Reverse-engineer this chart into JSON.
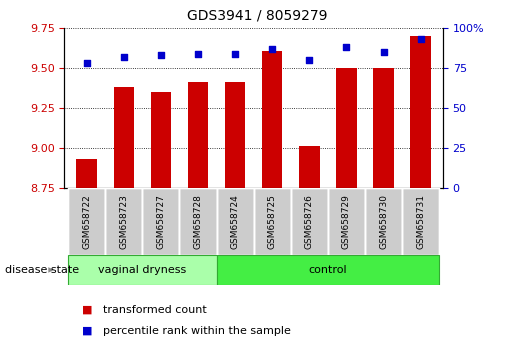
{
  "title": "GDS3941 / 8059279",
  "samples": [
    "GSM658722",
    "GSM658723",
    "GSM658727",
    "GSM658728",
    "GSM658724",
    "GSM658725",
    "GSM658726",
    "GSM658729",
    "GSM658730",
    "GSM658731"
  ],
  "bar_values": [
    8.93,
    9.38,
    9.35,
    9.41,
    9.41,
    9.61,
    9.01,
    9.5,
    9.5,
    9.7
  ],
  "dot_values": [
    78,
    82,
    83,
    84,
    84,
    87,
    80,
    88,
    85,
    93
  ],
  "ylim_left": [
    8.75,
    9.75
  ],
  "ylim_right": [
    0,
    100
  ],
  "yticks_left": [
    8.75,
    9.0,
    9.25,
    9.5,
    9.75
  ],
  "yticks_right": [
    0,
    25,
    50,
    75,
    100
  ],
  "bar_color": "#cc0000",
  "dot_color": "#0000cc",
  "vaginal_dryness_samples": [
    "GSM658722",
    "GSM658723",
    "GSM658727",
    "GSM658728"
  ],
  "control_samples": [
    "GSM658724",
    "GSM658725",
    "GSM658726",
    "GSM658729",
    "GSM658730",
    "GSM658731"
  ],
  "vd_color": "#aaffaa",
  "ctrl_color": "#44ee44",
  "legend_bar_label": "transformed count",
  "legend_dot_label": "percentile rank within the sample",
  "bar_width": 0.55,
  "base_value": 8.75,
  "sample_box_color": "#cccccc",
  "disease_state_label": "disease state"
}
